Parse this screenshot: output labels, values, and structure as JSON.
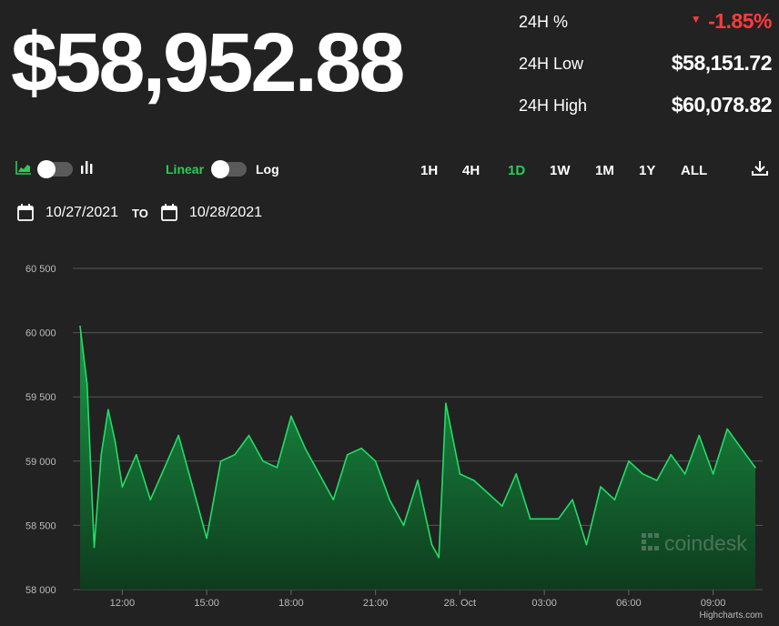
{
  "price": "$58,952.88",
  "stats": [
    {
      "label": "24H %",
      "value": "-1.85%",
      "direction": "down"
    },
    {
      "label": "24H Low",
      "value": "$58,151.72"
    },
    {
      "label": "24H High",
      "value": "$60,078.82"
    }
  ],
  "controls": {
    "scale_linear": "Linear",
    "scale_log": "Log",
    "ranges": [
      "1H",
      "4H",
      "1D",
      "1W",
      "1M",
      "1Y",
      "ALL"
    ],
    "active_range": "1D"
  },
  "date_range": {
    "from": "10/27/2021",
    "to_label": "TO",
    "to": "10/28/2021"
  },
  "watermark": "coindesk",
  "credit": "Highcharts.com",
  "colors": {
    "accent": "#2ecc55",
    "down": "#ff3b3b",
    "background": "#222222",
    "line": "#22dd66"
  },
  "chart_data": {
    "type": "area",
    "x_axis": {
      "ticks": [
        "12:00",
        "15:00",
        "18:00",
        "21:00",
        "28. Oct",
        "03:00",
        "06:00",
        "09:00"
      ]
    },
    "y_axis": {
      "ticks": [
        "58 000",
        "58 500",
        "59 000",
        "59 500",
        "60 000",
        "60 500"
      ],
      "range": [
        58000,
        60500
      ]
    },
    "grid": true,
    "series": [
      {
        "x": [
          "10/27/2021 10:30",
          "10/27/2021 10:45",
          "10/27/2021 11:00",
          "10/27/2021 11:15",
          "10/27/2021 11:30",
          "10/27/2021 11:45",
          "10/27/2021 12:00",
          "10/27/2021 12:30",
          "10/27/2021 13:00",
          "10/27/2021 13:30",
          "10/27/2021 14:00",
          "10/27/2021 14:30",
          "10/27/2021 15:00",
          "10/27/2021 15:30",
          "10/27/2021 16:00",
          "10/27/2021 16:30",
          "10/27/2021 17:00",
          "10/27/2021 17:30",
          "10/27/2021 18:00",
          "10/27/2021 18:30",
          "10/27/2021 19:00",
          "10/27/2021 19:30",
          "10/27/2021 20:00",
          "10/27/2021 20:30",
          "10/27/2021 21:00",
          "10/27/2021 21:30",
          "10/27/2021 22:00",
          "10/27/2021 22:30",
          "10/27/2021 23:00",
          "10/27/2021 23:15",
          "10/27/2021 23:30",
          "10/28/2021 00:00",
          "10/28/2021 00:30",
          "10/28/2021 01:00",
          "10/28/2021 01:30",
          "10/28/2021 02:00",
          "10/28/2021 02:30",
          "10/28/2021 03:00",
          "10/28/2021 03:30",
          "10/28/2021 04:00",
          "10/28/2021 04:30",
          "10/28/2021 05:00",
          "10/28/2021 05:30",
          "10/28/2021 06:00",
          "10/28/2021 06:30",
          "10/28/2021 07:00",
          "10/28/2021 07:30",
          "10/28/2021 08:00",
          "10/28/2021 08:30",
          "10/28/2021 09:00",
          "10/28/2021 09:30",
          "10/28/2021 10:00",
          "10/28/2021 10:30"
        ],
        "values": [
          60050,
          59600,
          58330,
          59050,
          59400,
          59150,
          58800,
          59050,
          58700,
          58950,
          59200,
          58800,
          58400,
          59000,
          59050,
          59200,
          59000,
          58950,
          59350,
          59100,
          58900,
          58700,
          59050,
          59100,
          59000,
          58700,
          58500,
          58850,
          58350,
          58250,
          59450,
          58900,
          58850,
          58750,
          58650,
          58900,
          58550,
          58550,
          58550,
          58700,
          58350,
          58800,
          58700,
          59000,
          58900,
          58850,
          59050,
          58900,
          59200,
          58900,
          59250,
          59100,
          58950
        ]
      }
    ]
  }
}
